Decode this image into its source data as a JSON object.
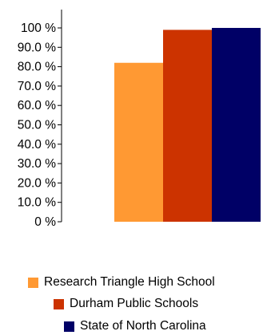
{
  "chart_data": {
    "type": "bar",
    "title": "",
    "xlabel": "",
    "ylabel": "",
    "ylim": [
      0,
      100
    ],
    "y_ticks": [
      "0 %",
      "10.0 %",
      "20.0 %",
      "30.0 %",
      "40.0 %",
      "50.0 %",
      "60.0 %",
      "70.0 %",
      "80.0 %",
      "90.0 %",
      "100 %"
    ],
    "grid": false,
    "legend_position": "bottom",
    "series": [
      {
        "name": "Research Triangle High School",
        "color": "#FF9933",
        "values": [
          82
        ]
      },
      {
        "name": "Durham Public Schools",
        "color": "#CC3300",
        "values": [
          99
        ]
      },
      {
        "name": "State of North Carolina",
        "color": "#000066",
        "values": [
          100
        ]
      }
    ]
  }
}
